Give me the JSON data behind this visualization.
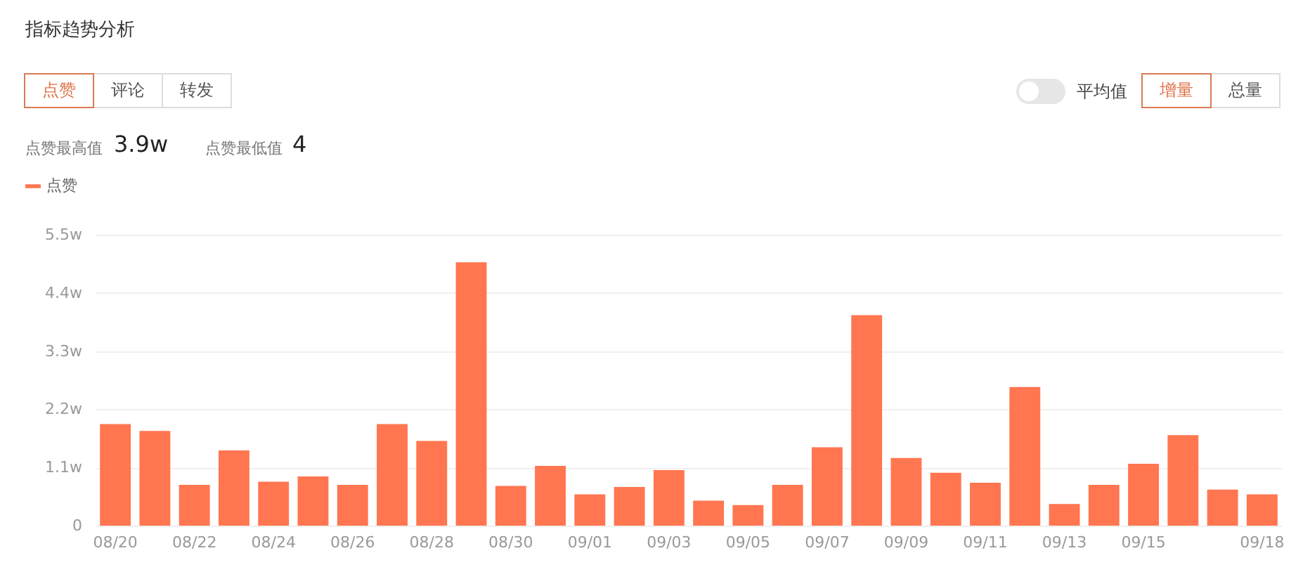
{
  "chart_data": {
    "type": "bar",
    "title": "指标趋势分析",
    "annotations": [
      "点赞",
      "评论",
      "转发",
      "平均值",
      "增量",
      "总量",
      "点赞最高值",
      "3.9w",
      "点赞最低值",
      "4"
    ],
    "categories": [
      "08/20",
      null,
      "08/22",
      null,
      "08/24",
      null,
      "08/26",
      null,
      "08/28",
      null,
      "08/30",
      null,
      "09/01",
      null,
      "09/03",
      null,
      "09/05",
      null,
      "09/07",
      null,
      "09/09",
      null,
      "09/11",
      null,
      "09/13",
      null,
      "09/15",
      null,
      null,
      "09/18"
    ],
    "series": [
      {
        "name": "点赞",
        "color": "#ff7650",
        "values": [
          1.92,
          1.79,
          0.77,
          1.42,
          0.83,
          0.93,
          0.77,
          1.92,
          1.6,
          4.98,
          0.75,
          1.13,
          0.59,
          0.73,
          1.05,
          0.47,
          0.39,
          0.77,
          1.48,
          3.98,
          1.28,
          1.0,
          0.81,
          2.62,
          0.41,
          0.77,
          1.17,
          1.71,
          0.68,
          0.59
        ]
      }
    ],
    "ylim": [
      0,
      5.5
    ],
    "yticks": [
      0,
      {
        "value": 1.1,
        "label": "1.1w"
      },
      {
        "value": 2.2,
        "label": "2.2w"
      },
      {
        "value": 3.3,
        "label": "3.3w"
      },
      {
        "value": 4.4,
        "label": "4.4w"
      },
      {
        "value": 5.5,
        "label": "5.5w"
      }
    ],
    "grid": "y",
    "legend": "top left"
  }
}
